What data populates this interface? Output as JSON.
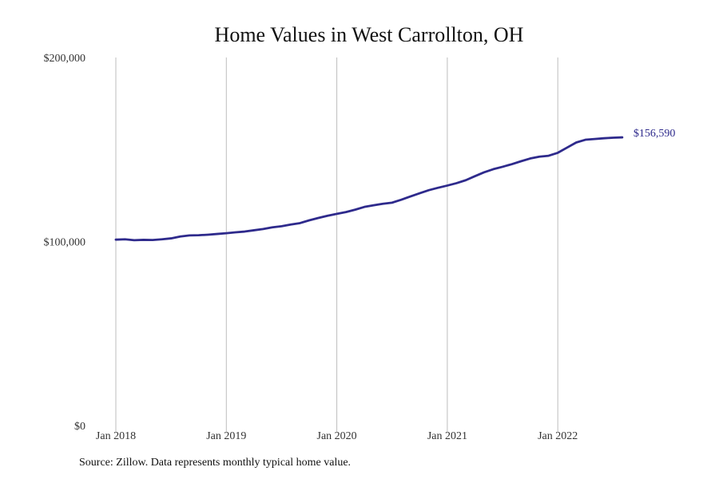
{
  "chart_data": {
    "type": "line",
    "title": "Home Values in West Carrollton, OH",
    "xlabel": "",
    "ylabel": "",
    "ylim": [
      0,
      200000
    ],
    "y_ticks": [
      0,
      100000,
      200000
    ],
    "y_tick_labels": [
      "$0",
      "$100,000",
      "$200,000"
    ],
    "x_tick_labels": [
      "Jan 2018",
      "Jan 2019",
      "Jan 2020",
      "Jan 2021",
      "Jan 2022"
    ],
    "x_tick_dates": [
      "2018-01",
      "2019-01",
      "2020-01",
      "2021-01",
      "2022-01"
    ],
    "grid": "vertical",
    "series": [
      {
        "color": "#2e2a8c",
        "end_label": "$156,590",
        "x": [
          "2018-01",
          "2018-02",
          "2018-03",
          "2018-04",
          "2018-05",
          "2018-06",
          "2018-07",
          "2018-08",
          "2018-09",
          "2018-10",
          "2018-11",
          "2018-12",
          "2019-01",
          "2019-02",
          "2019-03",
          "2019-04",
          "2019-05",
          "2019-06",
          "2019-07",
          "2019-08",
          "2019-09",
          "2019-10",
          "2019-11",
          "2019-12",
          "2020-01",
          "2020-02",
          "2020-03",
          "2020-04",
          "2020-05",
          "2020-06",
          "2020-07",
          "2020-08",
          "2020-09",
          "2020-10",
          "2020-11",
          "2020-12",
          "2021-01",
          "2021-02",
          "2021-03",
          "2021-04",
          "2021-05",
          "2021-06",
          "2021-07",
          "2021-08",
          "2021-09",
          "2021-10",
          "2021-11",
          "2021-12",
          "2022-01",
          "2022-02",
          "2022-03",
          "2022-04",
          "2022-05",
          "2022-06",
          "2022-07",
          "2022-08"
        ],
        "values": [
          101000,
          101200,
          100700,
          100900,
          100800,
          101200,
          101700,
          102700,
          103300,
          103400,
          103700,
          104100,
          104500,
          105000,
          105400,
          106100,
          106800,
          107700,
          108300,
          109200,
          110000,
          111500,
          112800,
          114000,
          115000,
          116000,
          117300,
          118800,
          119700,
          120500,
          121100,
          122700,
          124500,
          126200,
          127900,
          129200,
          130400,
          131700,
          133300,
          135500,
          137600,
          139300,
          140600,
          142000,
          143600,
          145100,
          146100,
          146600,
          148200,
          151000,
          153800,
          155300,
          155700,
          156100,
          156400,
          156590
        ]
      }
    ]
  },
  "source_note": "Source: Zillow. Data represents monthly typical home value."
}
